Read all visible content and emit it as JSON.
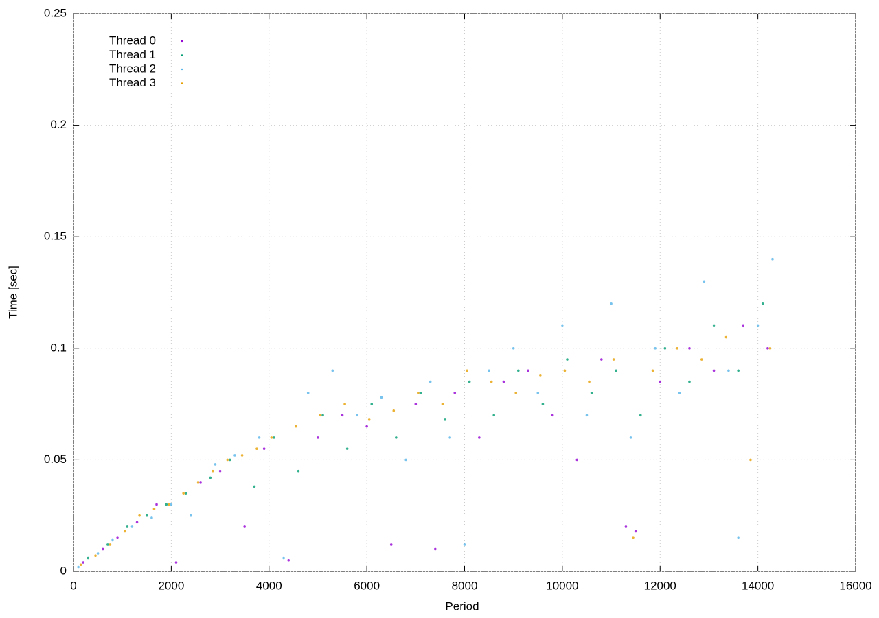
{
  "chart_data": {
    "type": "scatter",
    "xlabel": "Period",
    "ylabel": "Time [sec]",
    "xlim": [
      0,
      16000
    ],
    "ylim": [
      0,
      0.25
    ],
    "xticks": [
      0,
      2000,
      4000,
      6000,
      8000,
      10000,
      12000,
      14000,
      16000
    ],
    "yticks": [
      0,
      0.05,
      0.1,
      0.15,
      0.2,
      0.25
    ],
    "grid": true,
    "legend": "upper left",
    "series": [
      {
        "name": "Thread 0",
        "color": "#9400d3",
        "x": [
          200,
          600,
          900,
          1300,
          1700,
          2100,
          2600,
          3000,
          3500,
          3900,
          4400,
          5000,
          5500,
          6000,
          6500,
          7000,
          7400,
          7800,
          8300,
          8800,
          9300,
          9800,
          10300,
          10800,
          11300,
          11500,
          12000,
          12600,
          13100,
          13700,
          14200
        ],
        "values": [
          0.004,
          0.01,
          0.015,
          0.022,
          0.03,
          0.004,
          0.04,
          0.045,
          0.02,
          0.055,
          0.005,
          0.06,
          0.07,
          0.065,
          0.012,
          0.075,
          0.01,
          0.08,
          0.06,
          0.085,
          0.09,
          0.07,
          0.05,
          0.095,
          0.02,
          0.018,
          0.085,
          0.1,
          0.09,
          0.11,
          0.1
        ]
      },
      {
        "name": "Thread 1",
        "color": "#009e73",
        "x": [
          300,
          700,
          1100,
          1500,
          1900,
          2300,
          2800,
          3200,
          3700,
          4100,
          4600,
          5100,
          5600,
          6100,
          6600,
          7100,
          7600,
          8100,
          8600,
          9100,
          9600,
          10100,
          10600,
          11100,
          11600,
          12100,
          12600,
          13100,
          13600,
          14100
        ],
        "values": [
          0.006,
          0.012,
          0.02,
          0.025,
          0.03,
          0.035,
          0.042,
          0.05,
          0.038,
          0.06,
          0.045,
          0.07,
          0.055,
          0.075,
          0.06,
          0.08,
          0.068,
          0.085,
          0.07,
          0.09,
          0.075,
          0.095,
          0.08,
          0.09,
          0.07,
          0.1,
          0.085,
          0.11,
          0.09,
          0.12
        ]
      },
      {
        "name": "Thread 2",
        "color": "#56b4e9",
        "x": [
          100,
          500,
          800,
          1200,
          1600,
          2000,
          2400,
          2900,
          3300,
          3800,
          4300,
          4800,
          5300,
          5800,
          6300,
          6800,
          7300,
          7700,
          8000,
          8500,
          9000,
          9500,
          10000,
          10500,
          11000,
          11400,
          11900,
          12400,
          12900,
          13400,
          13600,
          14000,
          14300
        ],
        "values": [
          0.002,
          0.008,
          0.014,
          0.02,
          0.024,
          0.03,
          0.025,
          0.048,
          0.052,
          0.06,
          0.006,
          0.08,
          0.09,
          0.07,
          0.078,
          0.05,
          0.085,
          0.06,
          0.012,
          0.09,
          0.1,
          0.08,
          0.11,
          0.07,
          0.12,
          0.06,
          0.1,
          0.08,
          0.13,
          0.09,
          0.015,
          0.11,
          0.14
        ]
      },
      {
        "name": "Thread 3",
        "color": "#e69f00",
        "x": [
          150,
          450,
          750,
          1050,
          1350,
          1650,
          1950,
          2250,
          2550,
          2850,
          3150,
          3450,
          3750,
          4050,
          4550,
          5050,
          5550,
          6050,
          6550,
          7050,
          7550,
          8050,
          8550,
          9050,
          9550,
          10050,
          10550,
          11050,
          11450,
          11850,
          12350,
          12850,
          13350,
          13850,
          14250
        ],
        "values": [
          0.003,
          0.007,
          0.012,
          0.018,
          0.025,
          0.028,
          0.03,
          0.035,
          0.04,
          0.045,
          0.05,
          0.052,
          0.055,
          0.06,
          0.065,
          0.07,
          0.075,
          0.068,
          0.072,
          0.08,
          0.075,
          0.09,
          0.085,
          0.08,
          0.088,
          0.09,
          0.085,
          0.095,
          0.015,
          0.09,
          0.1,
          0.095,
          0.105,
          0.05,
          0.1
        ]
      }
    ]
  }
}
